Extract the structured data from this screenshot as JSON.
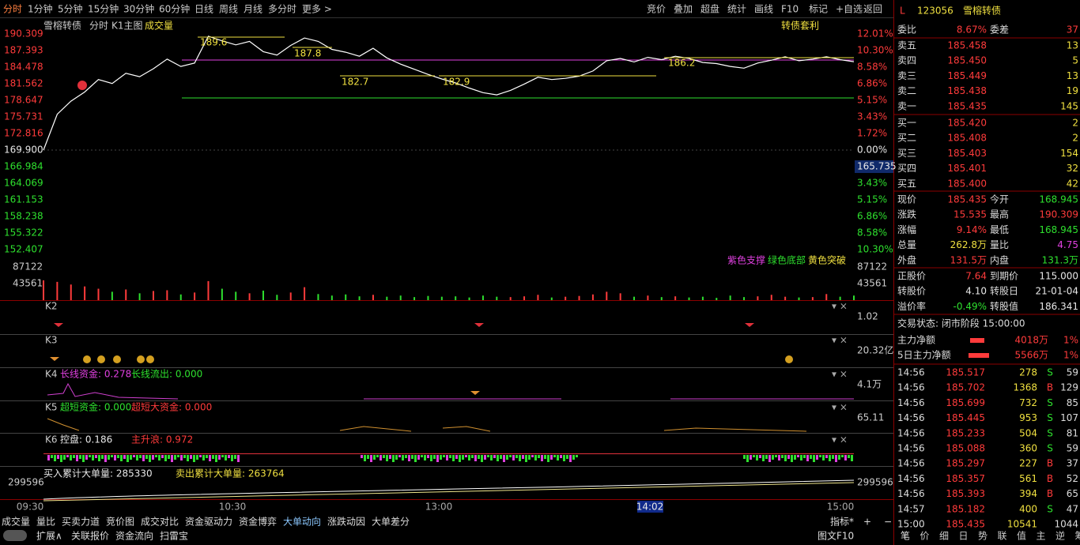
{
  "toolbar": {
    "periods": [
      "分时",
      "1分钟",
      "5分钟",
      "15分钟",
      "30分钟",
      "60分钟",
      "日线",
      "周线",
      "月线",
      "多分时",
      "更多 >"
    ],
    "tools": [
      "竞价",
      "叠加",
      "超盘",
      "统计",
      "画线",
      "F10",
      "标记",
      "+自选",
      "返回"
    ]
  },
  "chart": {
    "name": "雪榕转债",
    "mode": "分时",
    "main": "K1主图",
    "volume_title": "成交量",
    "arbitrage": "转债套利",
    "price_labels": [
      "190.309",
      "187.393",
      "184.478",
      "181.562",
      "178.647",
      "175.731",
      "172.816",
      "169.900",
      "166.984",
      "164.069",
      "161.153",
      "158.238",
      "155.322",
      "152.407"
    ],
    "pct_labels": [
      "12.01%",
      "10.30%",
      "8.58%",
      "6.86%",
      "5.15%",
      "3.43%",
      "1.72%",
      "0.00%",
      "165.735",
      "3.43%",
      "5.15%",
      "6.86%",
      "8.58%",
      "10.30%"
    ],
    "volume_labels": [
      "87122",
      "43561"
    ],
    "time_labels": [
      "09:30",
      "10:30",
      "13:00",
      "14:02",
      "15:00"
    ],
    "prices": [
      169.9,
      176.2,
      178.5,
      180.1,
      182.3,
      181.6,
      183.4,
      182.8,
      184.2,
      185.9,
      184.6,
      185.2,
      189.9,
      189.1,
      188.4,
      189.0,
      187.2,
      186.6,
      188.3,
      189.6,
      189.0,
      187.6,
      187.1,
      186.4,
      187.8,
      186.1,
      185.0,
      184.1,
      183.2,
      182.4,
      181.7,
      180.8,
      180.0,
      179.6,
      180.4,
      181.5,
      182.7,
      182.3,
      182.5,
      182.9,
      183.8,
      185.6,
      186.0,
      185.4,
      186.2,
      185.8,
      186.4,
      186.0,
      185.3,
      185.1,
      184.6,
      184.3,
      185.2,
      185.7,
      186.3,
      185.6,
      185.9,
      186.3,
      185.8,
      185.435
    ],
    "volumes": [
      52000,
      48000,
      41000,
      36000,
      30000,
      22000,
      28000,
      18000,
      24000,
      26000,
      15000,
      20000,
      50000,
      30000,
      22000,
      18000,
      25000,
      14000,
      20000,
      34000,
      16000,
      12000,
      15000,
      10000,
      14000,
      9000,
      12000,
      8000,
      11000,
      9000,
      10000,
      7000,
      12000,
      9000,
      8000,
      10000,
      14000,
      7000,
      9000,
      11000,
      15000,
      22000,
      18000,
      9000,
      12000,
      8000,
      10000,
      7000,
      9000,
      6000,
      12000,
      8000,
      10000,
      14000,
      9000,
      7000,
      8000,
      16000,
      9000,
      12000
    ],
    "levels": [
      185.73,
      179.07
    ],
    "annotations": [
      "189.6",
      "187.8",
      "182.7",
      "182.9",
      "186.2"
    ],
    "legend": [
      "紫色支撑",
      "绿色底部",
      "黄色突破"
    ]
  },
  "indicators": {
    "k2": {
      "label": "K2",
      "axis": "1.02"
    },
    "k3": {
      "label": "K3",
      "axis": "20.32亿"
    },
    "k4": {
      "label": "K4",
      "items": [
        "长线资金: 0.278",
        "长线流出: 0.000"
      ],
      "axis": "4.1万"
    },
    "k5": {
      "label": "K5",
      "items": [
        "超短资金: 0.000",
        "超短大资金: 0.000"
      ],
      "axis": "65.11"
    },
    "k6": {
      "label": "K6",
      "items": [
        "控盘: 0.186",
        "主升浪: 0.972"
      ]
    }
  },
  "big_orders": {
    "items": [
      "买入累计大单量: 285330",
      "卖出累计大单量: 263764"
    ],
    "axis": "299596"
  },
  "quote": {
    "flag": "L",
    "code": "123056",
    "name": "雪榕转债",
    "ratio": [
      "委比",
      "8.67%",
      "委差",
      "37"
    ],
    "asks": [
      [
        "卖五",
        "185.458",
        "13"
      ],
      [
        "卖四",
        "185.450",
        "5"
      ],
      [
        "卖三",
        "185.449",
        "13"
      ],
      [
        "卖二",
        "185.438",
        "19"
      ],
      [
        "卖一",
        "185.435",
        "145"
      ]
    ],
    "bids": [
      [
        "买一",
        "185.420",
        "2"
      ],
      [
        "买二",
        "185.408",
        "2"
      ],
      [
        "买三",
        "185.403",
        "154"
      ],
      [
        "买四",
        "185.401",
        "32"
      ],
      [
        "买五",
        "185.400",
        "42"
      ]
    ],
    "stats": [
      [
        "现价",
        "185.435",
        "今开",
        "168.945"
      ],
      [
        "涨跌",
        "15.535",
        "最高",
        "190.309"
      ],
      [
        "涨幅",
        "9.14%",
        "最低",
        "168.945"
      ],
      [
        "总量",
        "262.8万",
        "量比",
        "4.75"
      ],
      [
        "外盘",
        "131.5万",
        "内盘",
        "131.3万"
      ]
    ],
    "bond": [
      [
        "正股价",
        "7.64",
        "到期价",
        "115.000"
      ],
      [
        "转股价",
        "4.10",
        "转股日",
        "21-01-04"
      ],
      [
        "溢价率",
        "-0.49%",
        "转股值",
        "186.341"
      ]
    ],
    "status": "交易状态: 闭市阶段 15:00:00",
    "flows": [
      [
        "主力净额",
        "4018万",
        "1%"
      ],
      [
        "5日主力净额",
        "5566万",
        "1%"
      ]
    ],
    "trades": [
      {
        "time": "14:56",
        "price": "185.517",
        "volume": "278",
        "side": "S",
        "count": "59"
      },
      {
        "time": "14:56",
        "price": "185.702",
        "volume": "1368",
        "side": "B",
        "count": "129"
      },
      {
        "time": "14:56",
        "price": "185.699",
        "volume": "732",
        "side": "S",
        "count": "85"
      },
      {
        "time": "14:56",
        "price": "185.445",
        "volume": "953",
        "side": "S",
        "count": "107"
      },
      {
        "time": "14:56",
        "price": "185.233",
        "volume": "504",
        "side": "S",
        "count": "81"
      },
      {
        "time": "14:56",
        "price": "185.088",
        "volume": "360",
        "side": "S",
        "count": "59"
      },
      {
        "time": "14:56",
        "price": "185.297",
        "volume": "227",
        "side": "B",
        "count": "37"
      },
      {
        "time": "14:56",
        "price": "185.357",
        "volume": "561",
        "side": "B",
        "count": "52"
      },
      {
        "time": "14:56",
        "price": "185.393",
        "volume": "394",
        "side": "B",
        "count": "65"
      },
      {
        "time": "14:57",
        "price": "185.182",
        "volume": "400",
        "side": "S",
        "count": "47"
      },
      {
        "time": "15:00",
        "price": "185.435",
        "volume": "10541",
        "count": "1044"
      }
    ]
  },
  "footer": {
    "tabs": [
      "成交量",
      "量比",
      "买卖力道",
      "竞价图",
      "成交对比",
      "资金驱动力",
      "资金博弈",
      "大单动向",
      "涨跌动因",
      "大单差分"
    ],
    "right": [
      "指标*",
      "+",
      "−"
    ],
    "extra": [
      "扩展∧",
      "关联报价",
      "资金流向",
      "扫雷宝"
    ],
    "f10": "图文F10",
    "right_tabs": [
      "笔",
      "价",
      "细",
      "日",
      "势",
      "联",
      "值",
      "主",
      "逆",
      "筹"
    ]
  }
}
